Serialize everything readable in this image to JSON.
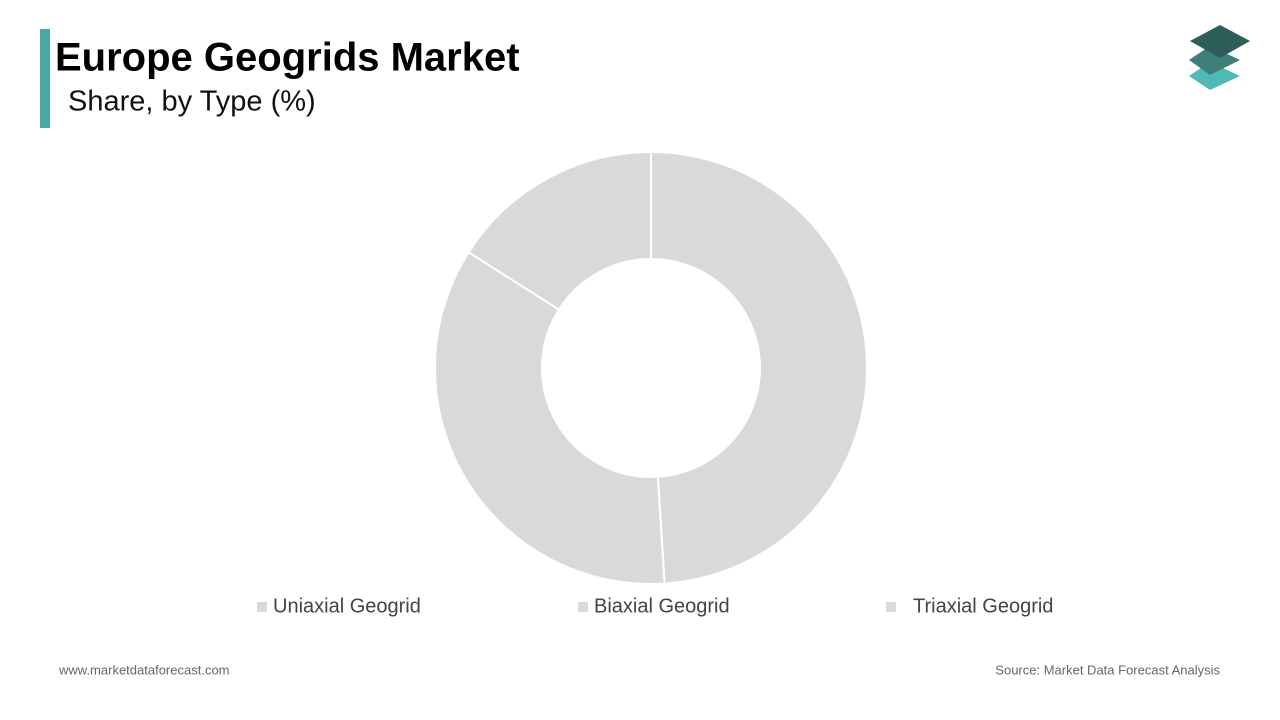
{
  "chart_data": {
    "type": "donut",
    "title": "Europe Geogrids Market",
    "subtitle": "Share, by Type (%)",
    "categories": [
      "Uniaxial Geogrid",
      "Biaxial Geogrid",
      "Triaxial Geogrid"
    ],
    "values": [
      49,
      35,
      16
    ],
    "colors": [
      "#d9d9d9",
      "#d9d9d9",
      "#d9d9d9"
    ]
  },
  "footer": {
    "website": "www.marketdataforecast.com",
    "source": "Source: Market Data Forecast Analysis"
  }
}
